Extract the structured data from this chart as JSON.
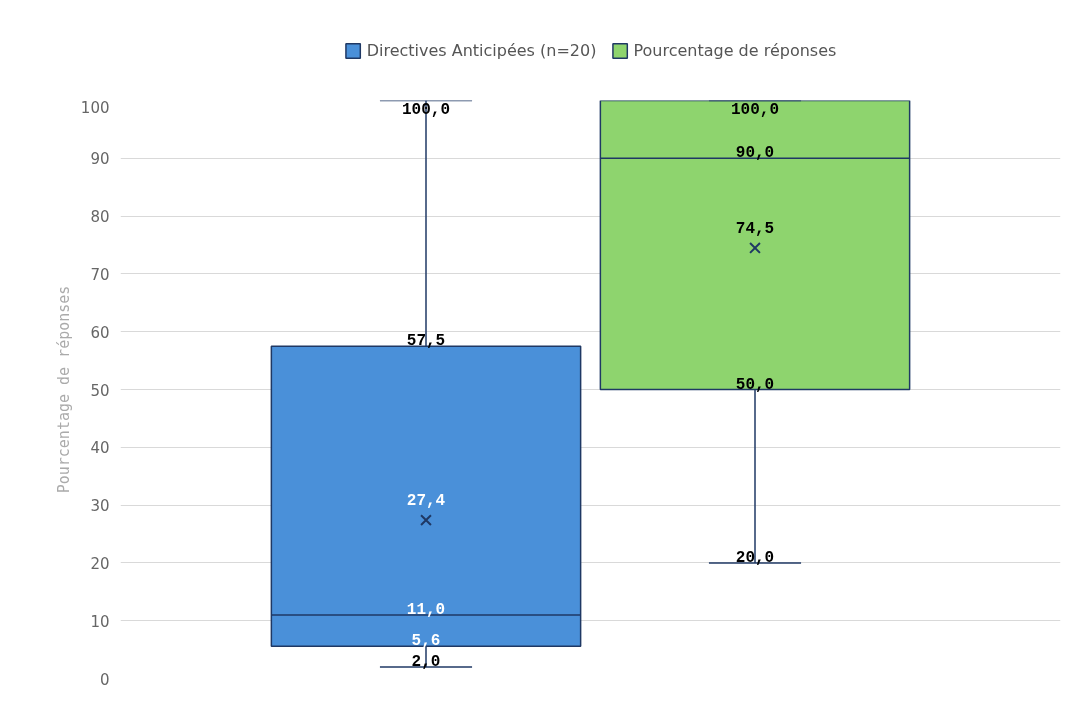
{
  "chart_data": {
    "type": "box",
    "categories": [
      null
    ],
    "ylabel": "Pourcentage de réponses",
    "ylim": [
      0,
      100
    ],
    "yticks": [
      0,
      10,
      20,
      30,
      40,
      50,
      60,
      70,
      80,
      90,
      100
    ],
    "grid": "y",
    "legend": "top",
    "data_labels": true,
    "tick_labels": "y",
    "series": [
      {
        "name": "Directives Anticipées (n=20)",
        "color": "#4a90d9",
        "boxes": [
          {
            "low": 2.0,
            "q1": 5.6,
            "median": 11.0,
            "q3": 57.5,
            "high": 100.0,
            "mean": 27.4
          }
        ],
        "value_labels": [
          [
            "2,0",
            "5,6",
            "11,0",
            "57,5",
            "100,0",
            "27,4"
          ]
        ]
      },
      {
        "name": "Pourcentage de réponses",
        "color": "#8ed46e",
        "boxes": [
          {
            "low": 20.0,
            "q1": 50.0,
            "median": 90.0,
            "q3": 100.0,
            "high": 100.0,
            "mean": 74.5
          }
        ],
        "value_labels": [
          [
            "20,0",
            "50,0",
            "90,0",
            "100,0",
            null,
            "74,5"
          ]
        ]
      }
    ]
  }
}
